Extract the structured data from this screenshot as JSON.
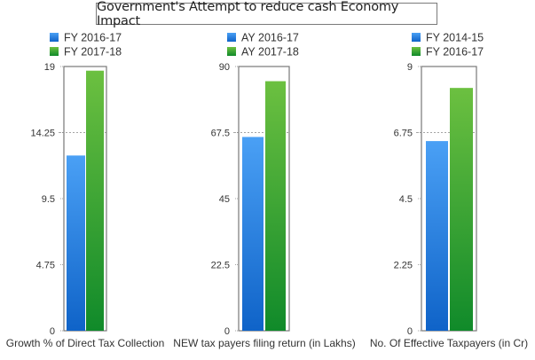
{
  "title": "Government's Attempt to reduce cash Economy Impact",
  "colors": {
    "blue_top": "#4aa0f5",
    "blue_bottom": "#0f63c8",
    "green_top": "#6cc040",
    "green_bottom": "#108a2a",
    "frame": "#777777",
    "grid": "#888888"
  },
  "chart_data": [
    {
      "type": "bar",
      "title": "",
      "xlabel": "Growth % of Direct Tax Collection",
      "ylabel": "",
      "ylim": [
        0,
        19
      ],
      "yticks": [
        "0",
        "4.75",
        "9.5",
        "14.25",
        "19"
      ],
      "ytick_values": [
        0,
        4.75,
        9.5,
        14.25,
        19
      ],
      "gridline_at": 14.25,
      "legend_position": "top-left",
      "series": [
        {
          "name": "FY 2016-17",
          "values": [
            12.6
          ]
        },
        {
          "name": "FY 2017-18",
          "values": [
            18.7
          ]
        }
      ]
    },
    {
      "type": "bar",
      "title": "",
      "xlabel": "NEW tax payers filing return (in Lakhs)",
      "ylabel": "",
      "ylim": [
        0,
        90
      ],
      "yticks": [
        "0",
        "22.5",
        "45",
        "67.5",
        "90"
      ],
      "ytick_values": [
        0,
        22.5,
        45,
        67.5,
        90
      ],
      "gridline_at": 67.5,
      "legend_position": "top-left",
      "series": [
        {
          "name": "AY 2016-17",
          "values": [
            66.0
          ]
        },
        {
          "name": "AY 2017-18",
          "values": [
            85.0
          ]
        }
      ]
    },
    {
      "type": "bar",
      "title": "",
      "xlabel": "No. Of Effective Taxpayers (in Cr)",
      "ylabel": "",
      "ylim": [
        0,
        9
      ],
      "yticks": [
        "0",
        "2.25",
        "4.5",
        "6.75",
        "9"
      ],
      "ytick_values": [
        0,
        2.25,
        4.5,
        6.75,
        9
      ],
      "gridline_at": 6.75,
      "legend_position": "top-left",
      "series": [
        {
          "name": "FY 2014-15",
          "values": [
            6.46
          ]
        },
        {
          "name": "FY 2016-17",
          "values": [
            8.27
          ]
        }
      ]
    }
  ]
}
